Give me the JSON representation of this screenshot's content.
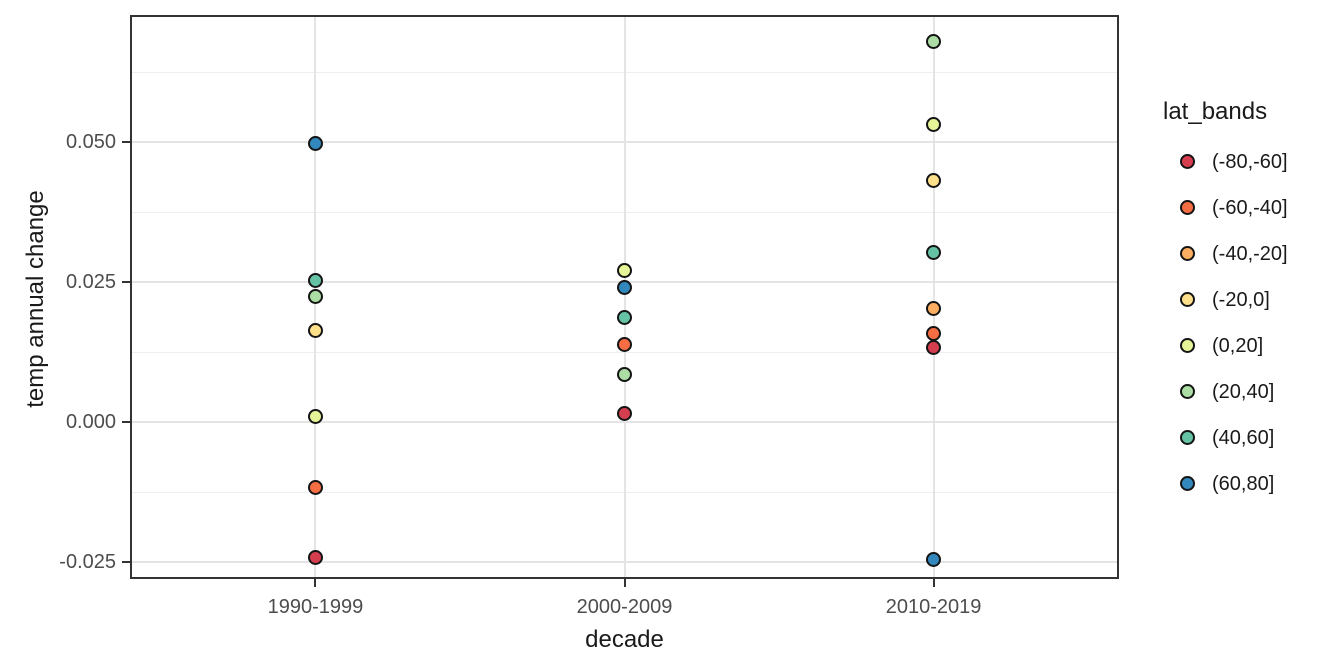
{
  "chart_data": {
    "type": "scatter",
    "title": "",
    "xlabel": "decade",
    "ylabel": "temp annual change",
    "categories": [
      "1990-1999",
      "2000-2009",
      "2010-2019"
    ],
    "y_ticks": [
      {
        "label": "0.050",
        "value": 0.05
      },
      {
        "label": "0.025",
        "value": 0.025
      },
      {
        "label": "0.000",
        "value": 0.0
      },
      {
        "label": "-0.025",
        "value": -0.025
      }
    ],
    "y_minor_ticks": [
      0.0625,
      0.0375,
      0.0125,
      -0.0125
    ],
    "ylim": [
      -0.028,
      0.0727
    ],
    "grid": {
      "horizontal_major": true,
      "horizontal_minor": true,
      "vertical_at_categories": true
    },
    "panel_style": {
      "background": "#ffffff",
      "border_color": "#333333",
      "gridline_color": "#e4e4e4"
    },
    "legend": {
      "title": "lat_bands",
      "position": "right",
      "entries": [
        {
          "label": "(-80,-60]",
          "color": "#d53e4f"
        },
        {
          "label": "(-60,-40]",
          "color": "#f46d43"
        },
        {
          "label": "(-40,-20]",
          "color": "#fdae61"
        },
        {
          "label": "(-20,0]",
          "color": "#fee08b"
        },
        {
          "label": "(0,20]",
          "color": "#e6f598"
        },
        {
          "label": "(20,40]",
          "color": "#abdda4"
        },
        {
          "label": "(40,60]",
          "color": "#66c2a5"
        },
        {
          "label": "(60,80]",
          "color": "#3288bd"
        }
      ]
    },
    "series": [
      {
        "name": "(-80,-60]",
        "color": "#d53e4f",
        "points": [
          {
            "x": "1990-1999",
            "y": -0.0242
          },
          {
            "x": "2000-2009",
            "y": 0.0016
          },
          {
            "x": "2010-2019",
            "y": 0.0133
          }
        ]
      },
      {
        "name": "(-60,-40]",
        "color": "#f46d43",
        "points": [
          {
            "x": "1990-1999",
            "y": -0.0117
          },
          {
            "x": "2000-2009",
            "y": 0.0139
          },
          {
            "x": "2010-2019",
            "y": 0.0158
          }
        ]
      },
      {
        "name": "(-40,-20]",
        "color": "#fdae61",
        "points": [
          {
            "x": "2010-2019",
            "y": 0.0202
          }
        ]
      },
      {
        "name": "(-20,0]",
        "color": "#fee08b",
        "points": [
          {
            "x": "1990-1999",
            "y": 0.0163
          },
          {
            "x": "2010-2019",
            "y": 0.0431
          }
        ]
      },
      {
        "name": "(0,20]",
        "color": "#e6f598",
        "points": [
          {
            "x": "1990-1999",
            "y": 0.0009
          },
          {
            "x": "2000-2009",
            "y": 0.027
          },
          {
            "x": "2010-2019",
            "y": 0.0532
          }
        ]
      },
      {
        "name": "(20,40]",
        "color": "#abdda4",
        "points": [
          {
            "x": "1990-1999",
            "y": 0.0224
          },
          {
            "x": "2000-2009",
            "y": 0.0084
          },
          {
            "x": "2010-2019",
            "y": 0.068
          }
        ]
      },
      {
        "name": "(40,60]",
        "color": "#66c2a5",
        "points": [
          {
            "x": "1990-1999",
            "y": 0.0252
          },
          {
            "x": "2000-2009",
            "y": 0.0186
          },
          {
            "x": "2010-2019",
            "y": 0.0303
          }
        ]
      },
      {
        "name": "(60,80]",
        "color": "#3288bd",
        "points": [
          {
            "x": "1990-1999",
            "y": 0.0497
          },
          {
            "x": "2000-2009",
            "y": 0.024
          },
          {
            "x": "2010-2019",
            "y": -0.0245
          }
        ]
      }
    ]
  }
}
